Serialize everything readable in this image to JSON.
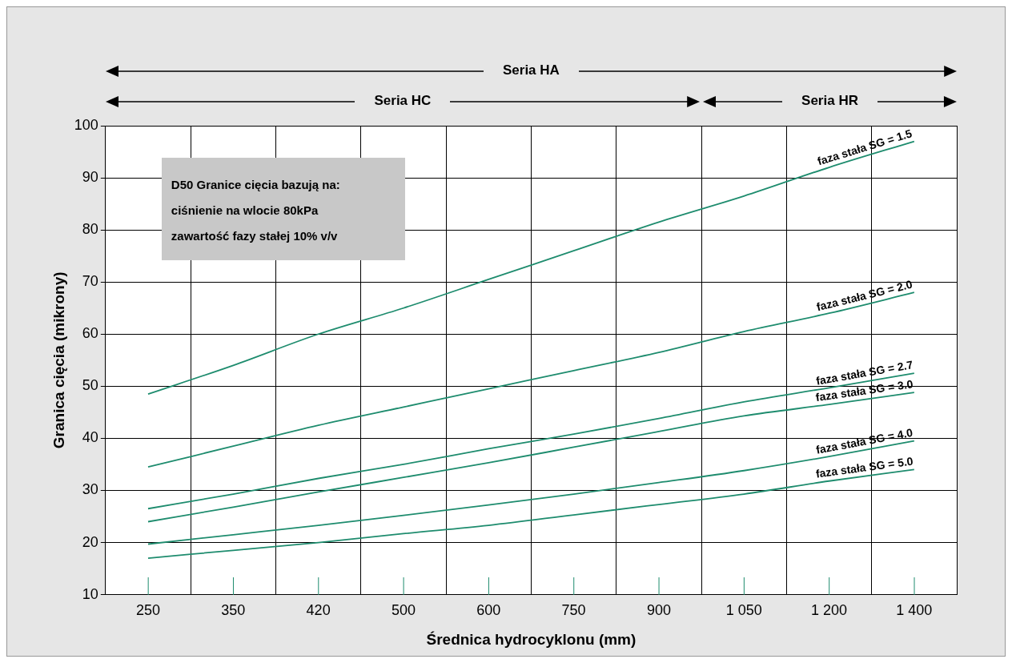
{
  "chart_data": {
    "type": "line",
    "xlabel": "Średnica hydrocyklonu (mm)",
    "ylabel": "Granica cięcia (mikrony)",
    "categories": [
      "250",
      "350",
      "420",
      "500",
      "600",
      "750",
      "900",
      "1 050",
      "1 200",
      "1 400"
    ],
    "series": [
      {
        "name": "faza stała SG = 1.5",
        "color": "#1e8c6e",
        "values": [
          48.5,
          54,
          60,
          65,
          70.5,
          76,
          81.5,
          86.5,
          92,
          97
        ]
      },
      {
        "name": "faza stała SG = 2.0",
        "color": "#1e8c6e",
        "values": [
          34.5,
          38.5,
          42.5,
          46,
          49.5,
          53,
          56.5,
          60.5,
          64,
          68
        ]
      },
      {
        "name": "faza stała SG = 2.7",
        "color": "#1e8c6e",
        "values": [
          26.5,
          29.3,
          32.3,
          35,
          38,
          40.8,
          43.8,
          47,
          49.7,
          52.5
        ]
      },
      {
        "name": "faza stała SG = 3.0",
        "color": "#1e8c6e",
        "values": [
          24,
          26.8,
          29.7,
          32.5,
          35.3,
          38.3,
          41.3,
          44.3,
          46.5,
          48.8
        ]
      },
      {
        "name": "faza stała SG = 4.0",
        "color": "#1e8c6e",
        "values": [
          19.7,
          21.5,
          23.3,
          25.2,
          27.2,
          29.3,
          31.5,
          33.8,
          36.5,
          39.5
        ]
      },
      {
        "name": "faza stała SG = 5.0",
        "color": "#1e8c6e",
        "values": [
          17,
          18.5,
          20,
          21.7,
          23.3,
          25.3,
          27.3,
          29.3,
          31.8,
          34
        ]
      }
    ],
    "ylim": [
      10,
      100
    ],
    "yticks": [
      10,
      20,
      30,
      40,
      50,
      60,
      70,
      80,
      90,
      100
    ],
    "grid": true,
    "legend": false,
    "marker": "none",
    "line_style": "solid",
    "annotations": [
      "Seria HA",
      "Seria HC",
      "Seria HR",
      "D50 Granice cięcia bazują na:",
      "ciśnienie na wlocie 80kPa",
      "zawartość fazy stałej 10% v/v"
    ]
  }
}
